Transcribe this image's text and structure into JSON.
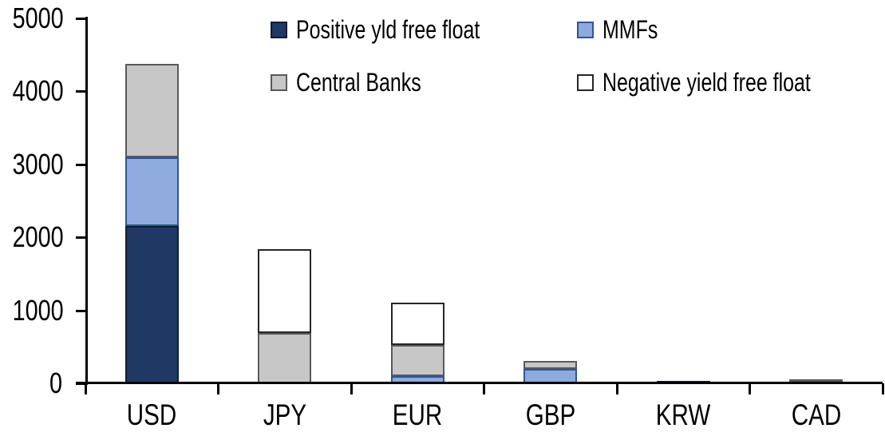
{
  "chart_data": {
    "type": "bar",
    "stacked": true,
    "title": "",
    "xlabel": "",
    "ylabel": "",
    "categories": [
      "USD",
      "JPY",
      "EUR",
      "GBP",
      "KRW",
      "CAD"
    ],
    "series": [
      {
        "name": "Positive yld free float",
        "color": "#1F3864",
        "border": "#101C30",
        "values": [
          2150,
          0,
          0,
          0,
          30,
          30
        ]
      },
      {
        "name": "MMFs",
        "color": "#8FAADC",
        "border": "#2F5597",
        "values": [
          950,
          0,
          100,
          200,
          0,
          0
        ]
      },
      {
        "name": "Central Banks",
        "color": "#C7C7C7",
        "border": "#595959",
        "values": [
          1280,
          690,
          430,
          110,
          0,
          25
        ]
      },
      {
        "name": "Negative yield free float",
        "color": "#FFFFFF",
        "border": "#262626",
        "values": [
          0,
          1150,
          580,
          0,
          0,
          0
        ]
      }
    ],
    "totals": [
      4380,
      1840,
      1110,
      310,
      30,
      55
    ],
    "ylim": [
      0,
      5000
    ],
    "yticks": [
      0,
      1000,
      2000,
      3000,
      4000,
      5000
    ],
    "legend_position": "top",
    "grid": false
  }
}
